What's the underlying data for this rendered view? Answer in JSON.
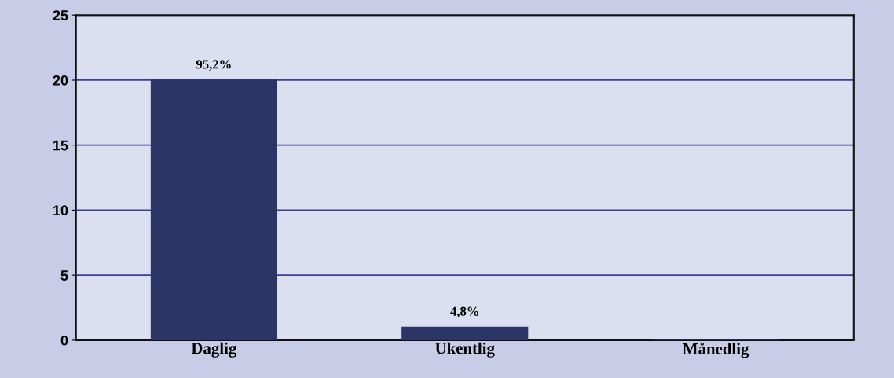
{
  "chart_data": {
    "type": "bar",
    "categories": [
      "Daglig",
      "Ukentlig",
      "Månedlig"
    ],
    "values": [
      20,
      1,
      0
    ],
    "color": "#2b3566",
    "annotations": [
      {
        "text": "95,2%",
        "x": "Daglig",
        "y": 20
      },
      {
        "text": "4,8%",
        "x": "Ukentlig",
        "y": 1
      }
    ],
    "ylim": [
      0,
      25
    ],
    "yticks": [
      0,
      5,
      10,
      15,
      20,
      25
    ],
    "grid": "y",
    "legend": false
  }
}
